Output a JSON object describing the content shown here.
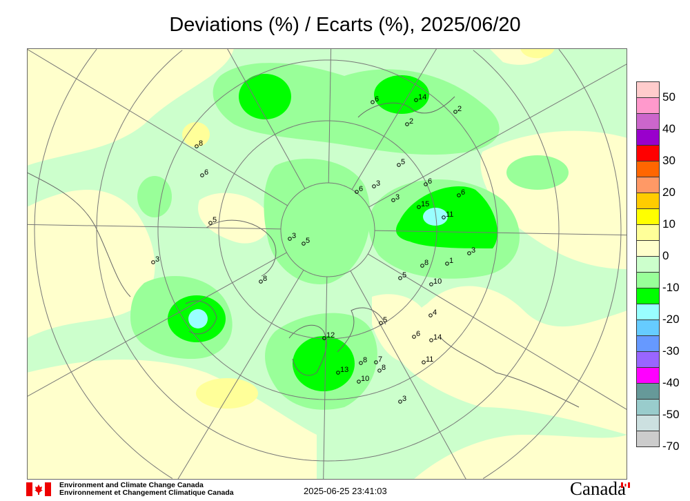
{
  "title": "Deviations (%) / Ecarts (%), 2025/06/20",
  "legend": {
    "colors": [
      "#ffcccc",
      "#ff99cc",
      "#cc66cc",
      "#9900cc",
      "#ff0000",
      "#ff6600",
      "#ff9966",
      "#ffcc00",
      "#ffff00",
      "#ffff99",
      "#ffffcc",
      "#ccffcc",
      "#99ff99",
      "#00ff00",
      "#99ffff",
      "#66ccff",
      "#6699ff",
      "#9966ff",
      "#ff00ff",
      "#669999",
      "#99cccc",
      "#cce0e0",
      "#cccccc"
    ],
    "labels": [
      "50",
      "40",
      "30",
      "20",
      "10",
      "0",
      "-10",
      "-20",
      "-30",
      "-40",
      "-50",
      "-70"
    ]
  },
  "map": {
    "colors": {
      "cream": "#ffffcc",
      "yellow": "#ffff99",
      "light_green": "#ccffcc",
      "mid_green": "#99ff99",
      "green": "#00ff00",
      "cyan": "#99ffff",
      "grid": "#777777",
      "coast": "#666666"
    },
    "stations": [
      "12",
      "13",
      "10",
      "8",
      "7",
      "8",
      "5",
      "6",
      "14",
      "11",
      "3",
      "4",
      "10",
      "8",
      "5",
      "1",
      "3",
      "11",
      "15",
      "6",
      "6",
      "5",
      "3",
      "3",
      "6",
      "2",
      "14",
      "6",
      "2",
      "8",
      "6",
      "5",
      "3",
      "8",
      "3",
      "5"
    ]
  },
  "footer": {
    "org_en": "Environment and Climate Change Canada",
    "org_fr": "Environnement et Changement Climatique Canada",
    "timestamp": "2025-06-25 23:41:03",
    "wordmark": "Canada"
  }
}
